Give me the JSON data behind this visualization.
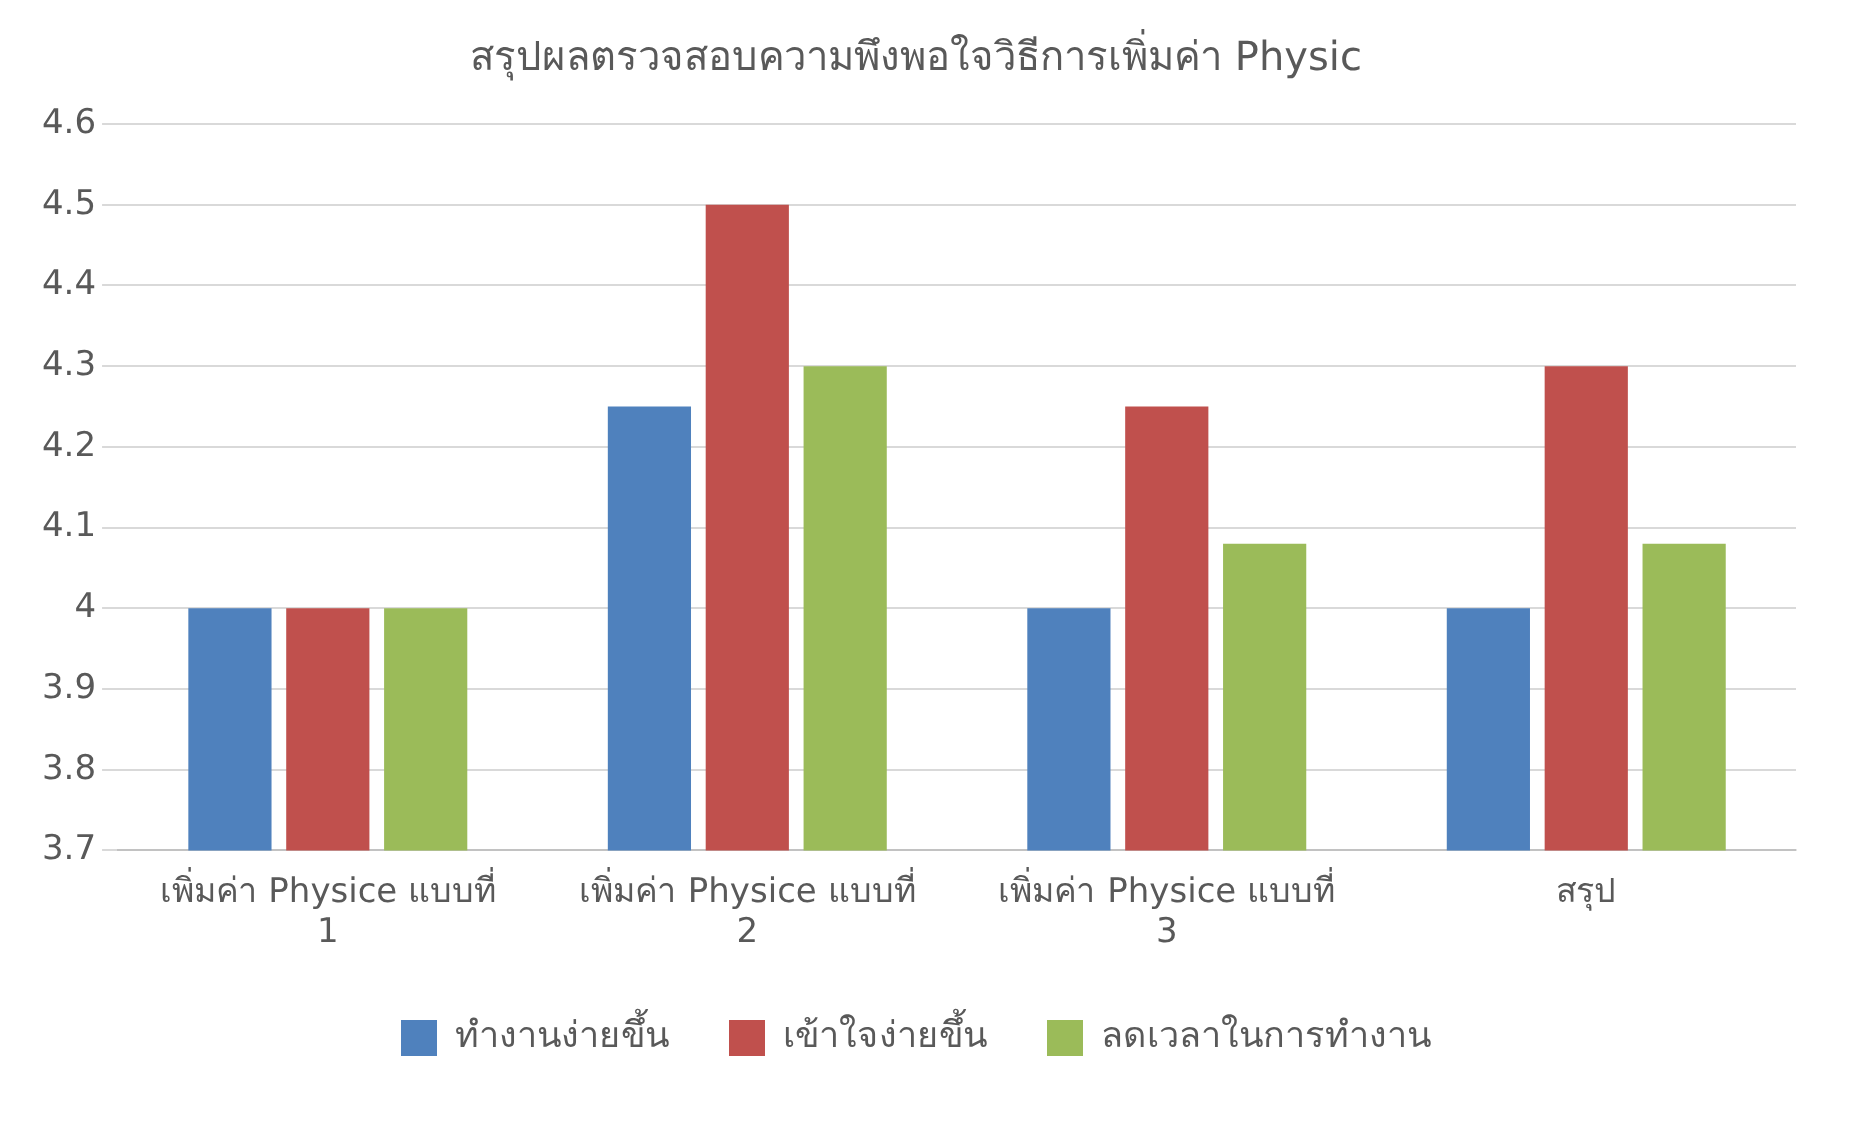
{
  "chart_data": {
    "type": "bar",
    "title": "สรุปผลตรวจสอบความพึงพอใจวิธีการเพิ่มค่า Physic",
    "categories": [
      "เพิ่มค่า Physice แบบที่ 1",
      "เพิ่มค่า Physice แบบที่ 2",
      "เพิ่มค่า Physice แบบที่ 3",
      "สรุป"
    ],
    "series": [
      {
        "name": "ทำงานง่ายขึ้น",
        "color": "#4f81bd",
        "values": [
          4,
          4.25,
          4,
          4
        ]
      },
      {
        "name": "เข้าใจง่ายขึ้น",
        "color": "#c0504d",
        "values": [
          4,
          4.5,
          4.25,
          4.3
        ]
      },
      {
        "name": "ลดเวลาในการทำงาน",
        "color": "#9bbb59",
        "values": [
          4,
          4.3,
          4.08,
          4.08
        ]
      }
    ],
    "ylim": [
      3.7,
      4.6
    ],
    "yticks": [
      3.7,
      3.8,
      3.9,
      4,
      4.1,
      4.2,
      4.3,
      4.4,
      4.5,
      4.6
    ],
    "grid": "y",
    "legend": "bottom"
  }
}
